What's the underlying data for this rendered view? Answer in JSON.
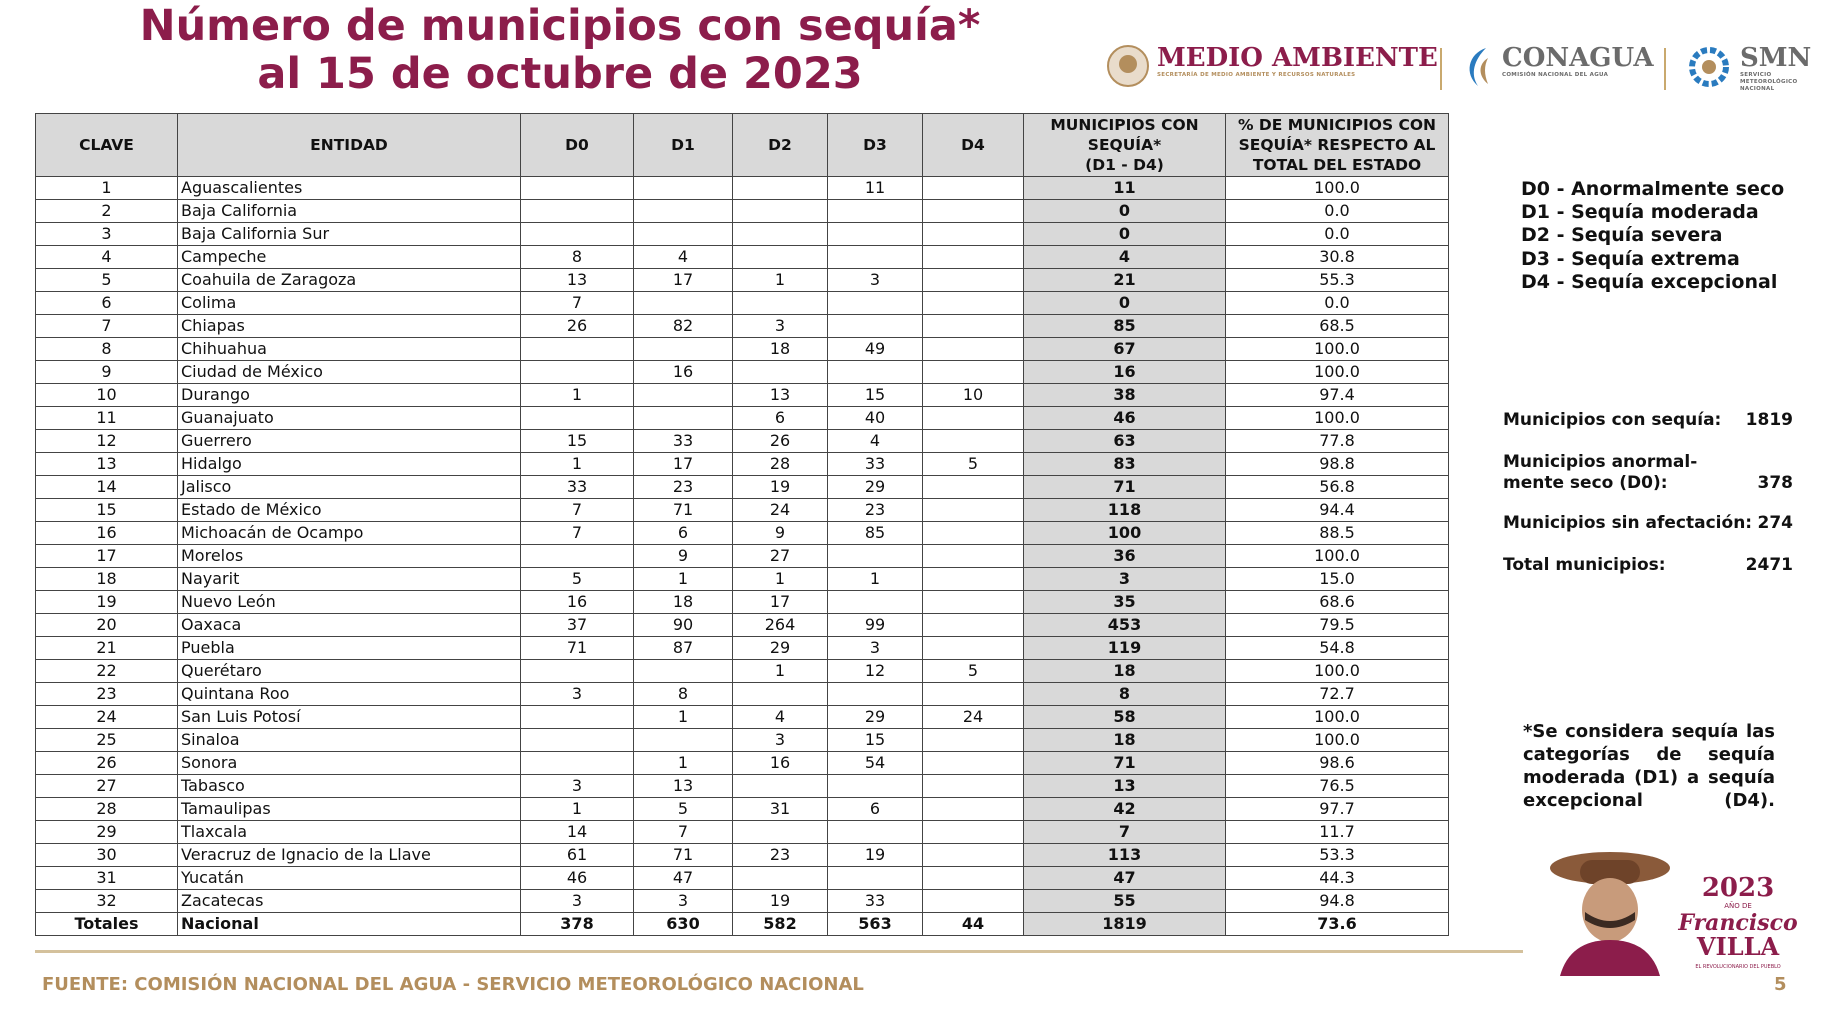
{
  "header": {
    "title_lines": [
      "Número de municipios con sequía*",
      "al 15 de octubre de 2023"
    ],
    "logos": [
      {
        "name": "MEDIO AMBIENTE",
        "subtitle": "SECRETARÍA DE MEDIO AMBIENTE Y RECURSOS NATURALES"
      },
      {
        "name": "CONAGUA",
        "subtitle": "COMISIÓN NACIONAL DEL AGUA"
      },
      {
        "name": "SMN",
        "subtitle": "SERVICIO METEOROLÓGICO NACIONAL"
      }
    ]
  },
  "table": {
    "headers": [
      "CLAVE",
      "ENTIDAD",
      "D0",
      "D1",
      "D2",
      "D3",
      "D4",
      [
        "MUNICIPIOS CON",
        "SEQUÍA*",
        "(D1 - D4)"
      ],
      [
        "% DE MUNICIPIOS CON",
        "SEQUÍA* RESPECTO AL",
        "TOTAL DEL ESTADO"
      ]
    ],
    "rows": [
      [
        "1",
        "Aguascalientes",
        null,
        null,
        null,
        "11",
        null,
        "11",
        "100.0"
      ],
      [
        "2",
        "Baja California",
        null,
        null,
        null,
        null,
        null,
        "0",
        "0.0"
      ],
      [
        "3",
        "Baja California Sur",
        null,
        null,
        null,
        null,
        null,
        "0",
        "0.0"
      ],
      [
        "4",
        "Campeche",
        "8",
        "4",
        null,
        null,
        null,
        "4",
        "30.8"
      ],
      [
        "5",
        "Coahuila de Zaragoza",
        "13",
        "17",
        "1",
        "3",
        null,
        "21",
        "55.3"
      ],
      [
        "6",
        "Colima",
        "7",
        null,
        null,
        null,
        null,
        "0",
        "0.0"
      ],
      [
        "7",
        "Chiapas",
        "26",
        "82",
        "3",
        null,
        null,
        "85",
        "68.5"
      ],
      [
        "8",
        "Chihuahua",
        null,
        null,
        "18",
        "49",
        null,
        "67",
        "100.0"
      ],
      [
        "9",
        "Ciudad de México",
        null,
        "16",
        null,
        null,
        null,
        "16",
        "100.0"
      ],
      [
        "10",
        "Durango",
        "1",
        null,
        "13",
        "15",
        "10",
        "38",
        "97.4"
      ],
      [
        "11",
        "Guanajuato",
        null,
        null,
        "6",
        "40",
        null,
        "46",
        "100.0"
      ],
      [
        "12",
        "Guerrero",
        "15",
        "33",
        "26",
        "4",
        null,
        "63",
        "77.8"
      ],
      [
        "13",
        "Hidalgo",
        "1",
        "17",
        "28",
        "33",
        "5",
        "83",
        "98.8"
      ],
      [
        "14",
        "Jalisco",
        "33",
        "23",
        "19",
        "29",
        null,
        "71",
        "56.8"
      ],
      [
        "15",
        "Estado de México",
        "7",
        "71",
        "24",
        "23",
        null,
        "118",
        "94.4"
      ],
      [
        "16",
        "Michoacán de Ocampo",
        "7",
        "6",
        "9",
        "85",
        null,
        "100",
        "88.5"
      ],
      [
        "17",
        "Morelos",
        null,
        "9",
        "27",
        null,
        null,
        "36",
        "100.0"
      ],
      [
        "18",
        "Nayarit",
        "5",
        "1",
        "1",
        "1",
        null,
        "3",
        "15.0"
      ],
      [
        "19",
        "Nuevo León",
        "16",
        "18",
        "17",
        null,
        null,
        "35",
        "68.6"
      ],
      [
        "20",
        "Oaxaca",
        "37",
        "90",
        "264",
        "99",
        null,
        "453",
        "79.5"
      ],
      [
        "21",
        "Puebla",
        "71",
        "87",
        "29",
        "3",
        null,
        "119",
        "54.8"
      ],
      [
        "22",
        "Querétaro",
        null,
        null,
        "1",
        "12",
        "5",
        "18",
        "100.0"
      ],
      [
        "23",
        "Quintana Roo",
        "3",
        "8",
        null,
        null,
        null,
        "8",
        "72.7"
      ],
      [
        "24",
        "San Luis Potosí",
        null,
        "1",
        "4",
        "29",
        "24",
        "58",
        "100.0"
      ],
      [
        "25",
        "Sinaloa",
        null,
        null,
        "3",
        "15",
        null,
        "18",
        "100.0"
      ],
      [
        "26",
        "Sonora",
        null,
        "1",
        "16",
        "54",
        null,
        "71",
        "98.6"
      ],
      [
        "27",
        "Tabasco",
        "3",
        "13",
        null,
        null,
        null,
        "13",
        "76.5"
      ],
      [
        "28",
        "Tamaulipas",
        "1",
        "5",
        "31",
        "6",
        null,
        "42",
        "97.7"
      ],
      [
        "29",
        "Tlaxcala",
        "14",
        "7",
        null,
        null,
        null,
        "7",
        "11.7"
      ],
      [
        "30",
        "Veracruz de Ignacio de la Llave",
        "61",
        "71",
        "23",
        "19",
        null,
        "113",
        "53.3"
      ],
      [
        "31",
        "Yucatán",
        "46",
        "47",
        null,
        null,
        null,
        "47",
        "44.3"
      ],
      [
        "32",
        "Zacatecas",
        "3",
        "3",
        "19",
        "33",
        null,
        "55",
        "94.8"
      ]
    ],
    "totals": [
      "Totales",
      "Nacional",
      "378",
      "630",
      "582",
      "563",
      "44",
      "1819",
      "73.6"
    ]
  },
  "legend": [
    "D0 - Anormalmente seco",
    "D1 - Sequía moderada",
    "D2 - Sequía severa",
    "D3 - Sequía extrema",
    "D4 - Sequía excepcional"
  ],
  "summary": [
    {
      "label": [
        "Municipios con sequía:"
      ],
      "value": "1819"
    },
    {
      "label": [
        "Municipios anormal-",
        "mente seco (D0):"
      ],
      "value": "378"
    },
    {
      "label": [
        "Municipios sin afectación:"
      ],
      "value": "274"
    },
    {
      "label": [
        "Total municipios:"
      ],
      "value": "2471"
    }
  ],
  "note": "*Se considera sequía las categorías de sequía moderada (D1) a sequía excepcional (D4).",
  "badge": {
    "year": "2023",
    "line": "AÑO DE",
    "name1": "Francisco",
    "name2": "VILLA",
    "motto": "EL REVOLUCIONARIO DEL PUEBLO"
  },
  "footer": {
    "source": "FUENTE: COMISIÓN NACIONAL DEL AGUA - SERVICIO METEOROLÓGICO NACIONAL",
    "page": "5"
  }
}
